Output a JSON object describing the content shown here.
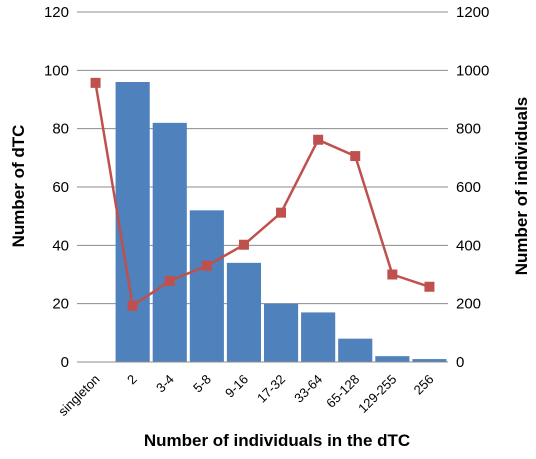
{
  "chart_data": {
    "type": "bar",
    "categories": [
      "singleton",
      "2",
      "3-4",
      "5-8",
      "9-16",
      "17-32",
      "33-64",
      "65-128",
      "129-255",
      "256"
    ],
    "series": [
      {
        "type": "bar",
        "axis": "left",
        "color": "#4f81bd",
        "values": [
          null,
          96,
          82,
          52,
          34,
          20,
          17,
          8,
          2,
          1
        ]
      },
      {
        "type": "line",
        "axis": "right",
        "color": "#c0504d",
        "marker": "square",
        "values": [
          957,
          193,
          278,
          330,
          402,
          512,
          762,
          706,
          300,
          258
        ]
      }
    ],
    "xlabel": "Number of individuals in the dTC",
    "ylabel": "Number of dTC",
    "y2label": "Number of individuals",
    "ylim": [
      0,
      120
    ],
    "y2lim": [
      0,
      1200
    ],
    "yticks": [
      0,
      20,
      40,
      60,
      80,
      100,
      120
    ],
    "y2ticks": [
      0,
      200,
      400,
      600,
      800,
      1000,
      1200
    ],
    "grid": "horizontal",
    "legend": "none"
  }
}
